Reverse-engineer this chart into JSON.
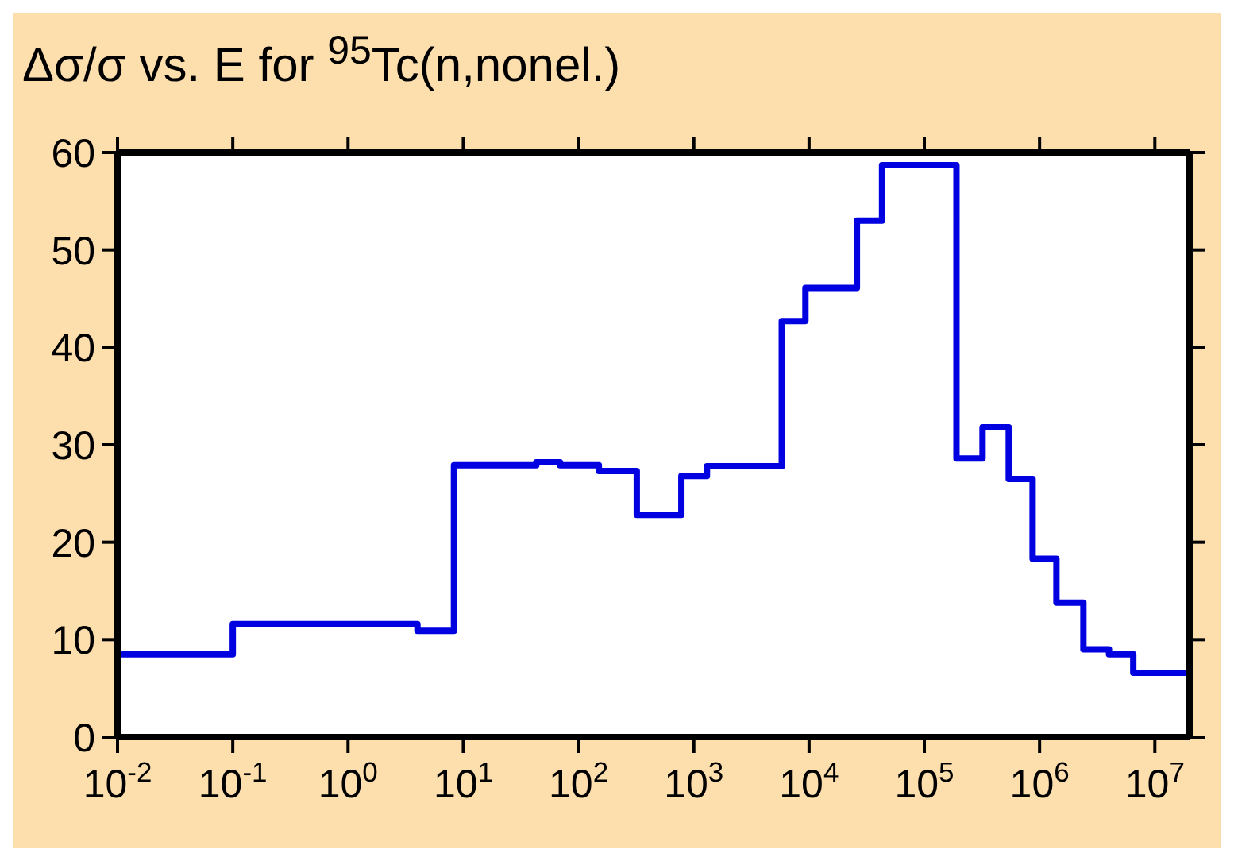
{
  "chart_data": {
    "type": "step",
    "title": "Δσ/σ vs. E for $^{95}$Tc(n,nonel.)",
    "log": "x",
    "x": [
      0.01,
      0.01,
      0.1,
      4,
      8.3,
      43,
      69,
      150,
      320,
      780,
      1300,
      5800,
      9300,
      26000,
      43000,
      190000,
      320000,
      540000,
      870000,
      1400000,
      2400000,
      4000000,
      6500000,
      20000000,
      20000000
    ],
    "series": [
      {
        "color": "#0000e0",
        "values": [
          0,
          8.5,
          11.6,
          10.9,
          27.9,
          28.2,
          27.9,
          27.3,
          22.8,
          26.8,
          27.8,
          42.7,
          46.1,
          53.0,
          58.7,
          28.6,
          31.8,
          26.5,
          18.3,
          13.8,
          9.0,
          8.5,
          6.6,
          6.6,
          0
        ]
      }
    ],
    "xlim": [
      0.01,
      20000000
    ],
    "xticks": [
      {
        "value": 0.01,
        "label": "10$^{-2}$"
      },
      {
        "value": 0.1,
        "label": "10$^{-1}$"
      },
      {
        "value": 1,
        "label": "10$^{0}$"
      },
      {
        "value": 10,
        "label": "10$^{1}$"
      },
      {
        "value": 100,
        "label": "10$^{2}$"
      },
      {
        "value": 1000,
        "label": "10$^{3}$"
      },
      {
        "value": 10000,
        "label": "10$^{4}$"
      },
      {
        "value": 100000,
        "label": "10$^{5}$"
      },
      {
        "value": 1000000,
        "label": "10$^{6}$"
      },
      {
        "value": 10000000,
        "label": "10$^{7}$"
      }
    ],
    "ylim": [
      0,
      60
    ],
    "yticks": [
      0,
      10,
      20,
      30,
      40,
      50,
      60
    ],
    "grid": false,
    "legend": false
  }
}
